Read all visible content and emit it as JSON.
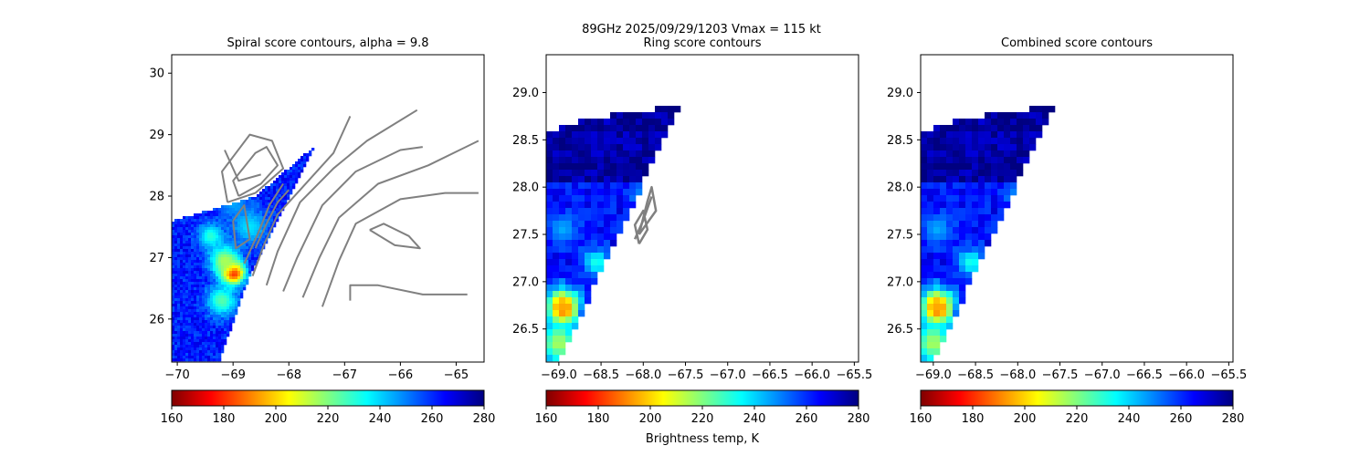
{
  "figure": {
    "suptitle_line1": "89GHz  2025/09/29/1203    Vmax = 115 kt",
    "colorbar_label": "Brightness temp, K"
  },
  "colors": {
    "contour": "#808080",
    "colormap": [
      "#800000",
      "#ff0000",
      "#ff8000",
      "#ffff00",
      "#80ff80",
      "#00ffff",
      "#0080ff",
      "#0000ff",
      "#000080"
    ],
    "colormap_name": "jet_r"
  },
  "chart_data": [
    {
      "type": "heatmap",
      "title": "Spiral score contours, alpha =  9.8",
      "xlim": [
        -70.1,
        -64.5
      ],
      "ylim": [
        25.3,
        30.3
      ],
      "xticks": [
        -70,
        -69,
        -68,
        -67,
        -66,
        -65
      ],
      "xtick_labels": [
        "−70",
        "−69",
        "−68",
        "−67",
        "−66",
        "−65"
      ],
      "yticks": [
        26,
        27,
        28,
        29,
        30
      ],
      "ytick_labels": [
        "26",
        "27",
        "28",
        "29",
        "30"
      ],
      "colorbar": {
        "range": [
          160,
          280
        ],
        "ticks": [
          "160",
          "180",
          "200",
          "220",
          "240",
          "260",
          "280"
        ]
      },
      "swath_polygon": [
        [
          -70.1,
          27.6
        ],
        [
          -69.3,
          27.8
        ],
        [
          -68.6,
          28.0
        ],
        [
          -68.2,
          28.3
        ],
        [
          -67.5,
          28.85
        ],
        [
          -68.7,
          26.7
        ],
        [
          -69.25,
          25.3
        ],
        [
          -70.1,
          25.3
        ]
      ],
      "hot_spots": [
        {
          "lon": -69.0,
          "lat": 26.75,
          "tb": 165,
          "r": 0.22
        },
        {
          "lon": -69.15,
          "lat": 26.95,
          "tb": 215,
          "r": 0.3
        },
        {
          "lon": -69.2,
          "lat": 26.3,
          "tb": 225,
          "r": 0.3
        },
        {
          "lon": -69.4,
          "lat": 27.35,
          "tb": 230,
          "r": 0.25
        },
        {
          "lon": -68.7,
          "lat": 27.5,
          "tb": 238,
          "r": 0.35
        },
        {
          "lon": -69.0,
          "lat": 27.9,
          "tb": 245,
          "r": 0.3
        }
      ],
      "background_tb": 262,
      "contours": [
        [
          [
            -68.9,
            28.0
          ],
          [
            -69.0,
            28.25
          ],
          [
            -68.6,
            28.7
          ],
          [
            -68.4,
            28.8
          ],
          [
            -68.2,
            28.5
          ],
          [
            -68.5,
            28.2
          ],
          [
            -68.9,
            28.0
          ]
        ],
        [
          [
            -69.1,
            27.9
          ],
          [
            -69.2,
            28.4
          ],
          [
            -68.7,
            29.0
          ],
          [
            -68.3,
            28.9
          ],
          [
            -68.1,
            28.45
          ],
          [
            -68.6,
            28.05
          ],
          [
            -69.1,
            27.9
          ]
        ],
        [
          [
            -69.15,
            28.75
          ],
          [
            -68.9,
            28.25
          ],
          [
            -68.5,
            28.35
          ]
        ],
        [
          [
            -69.0,
            27.6
          ],
          [
            -68.8,
            27.85
          ],
          [
            -68.7,
            27.3
          ],
          [
            -68.95,
            27.15
          ],
          [
            -69.0,
            27.6
          ]
        ],
        [
          [
            -68.6,
            27.15
          ],
          [
            -68.4,
            27.55
          ],
          [
            -68.2,
            27.9
          ],
          [
            -68.0,
            28.1
          ]
        ],
        [
          [
            -68.8,
            26.9
          ],
          [
            -68.55,
            27.4
          ],
          [
            -68.35,
            27.85
          ],
          [
            -68.1,
            28.2
          ]
        ],
        [
          [
            -68.65,
            26.7
          ],
          [
            -68.45,
            27.2
          ],
          [
            -68.2,
            27.7
          ],
          [
            -67.8,
            28.1
          ],
          [
            -67.2,
            28.7
          ],
          [
            -66.9,
            29.3
          ]
        ],
        [
          [
            -68.4,
            26.55
          ],
          [
            -68.2,
            27.1
          ],
          [
            -67.8,
            27.9
          ],
          [
            -67.2,
            28.45
          ],
          [
            -66.6,
            28.9
          ],
          [
            -65.7,
            29.4
          ]
        ],
        [
          [
            -68.1,
            26.45
          ],
          [
            -67.85,
            27.0
          ],
          [
            -67.4,
            27.85
          ],
          [
            -66.8,
            28.4
          ],
          [
            -66.0,
            28.75
          ],
          [
            -65.6,
            28.8
          ]
        ],
        [
          [
            -67.75,
            26.35
          ],
          [
            -67.45,
            27.0
          ],
          [
            -67.1,
            27.65
          ],
          [
            -66.4,
            28.2
          ],
          [
            -65.5,
            28.5
          ],
          [
            -64.6,
            28.9
          ]
        ],
        [
          [
            -67.4,
            26.2
          ],
          [
            -67.1,
            26.95
          ],
          [
            -66.8,
            27.55
          ],
          [
            -66.0,
            27.95
          ],
          [
            -65.2,
            28.05
          ],
          [
            -64.6,
            28.05
          ]
        ],
        [
          [
            -66.9,
            26.3
          ],
          [
            -66.9,
            26.55
          ],
          [
            -66.4,
            26.55
          ],
          [
            -65.6,
            26.4
          ],
          [
            -64.8,
            26.4
          ]
        ],
        [
          [
            -66.55,
            27.45
          ],
          [
            -66.1,
            27.2
          ],
          [
            -65.65,
            27.15
          ],
          [
            -65.85,
            27.35
          ],
          [
            -66.3,
            27.55
          ],
          [
            -66.55,
            27.45
          ]
        ]
      ]
    },
    {
      "type": "heatmap",
      "title": "Ring score contours",
      "xlim": [
        -69.15,
        -65.45
      ],
      "ylim": [
        26.15,
        29.4
      ],
      "xticks": [
        -69.0,
        -68.5,
        -68.0,
        -67.5,
        -67.0,
        -66.5,
        -66.0,
        -65.5
      ],
      "xtick_labels": [
        "−69.0",
        "−68.5",
        "−68.0",
        "−67.5",
        "−67.0",
        "−66.5",
        "−66.0",
        "−65.5"
      ],
      "yticks": [
        26.5,
        27.0,
        27.5,
        28.0,
        28.5,
        29.0
      ],
      "ytick_labels": [
        "26.5",
        "27.0",
        "27.5",
        "28.0",
        "28.5",
        "29.0"
      ],
      "colorbar": {
        "range": [
          160,
          280
        ],
        "ticks": [
          "160",
          "180",
          "200",
          "220",
          "240",
          "260",
          "280"
        ]
      },
      "swath_polygon": [
        [
          -69.15,
          28.6
        ],
        [
          -68.9,
          28.65
        ],
        [
          -68.5,
          28.75
        ],
        [
          -68.0,
          28.8
        ],
        [
          -67.55,
          28.9
        ],
        [
          -69.0,
          26.15
        ],
        [
          -69.15,
          26.15
        ]
      ],
      "hot_spots": [
        {
          "lon": -68.95,
          "lat": 26.7,
          "tb": 160,
          "r": 0.12
        },
        {
          "lon": -68.95,
          "lat": 26.75,
          "tb": 195,
          "r": 0.22
        },
        {
          "lon": -69.0,
          "lat": 26.35,
          "tb": 215,
          "r": 0.25
        },
        {
          "lon": -68.55,
          "lat": 27.2,
          "tb": 232,
          "r": 0.18
        },
        {
          "lon": -68.95,
          "lat": 27.55,
          "tb": 245,
          "r": 0.2
        },
        {
          "lon": -68.0,
          "lat": 27.9,
          "tb": 245,
          "r": 0.15
        }
      ],
      "background_tb": 264,
      "upper_tb": 276,
      "contours": [
        [
          [
            -68.05,
            27.4
          ],
          [
            -68.1,
            27.6
          ],
          [
            -68.0,
            27.75
          ],
          [
            -67.95,
            27.55
          ],
          [
            -68.05,
            27.4
          ]
        ],
        [
          [
            -68.05,
            27.5
          ],
          [
            -67.95,
            27.85
          ],
          [
            -67.9,
            28.0
          ],
          [
            -67.85,
            27.75
          ],
          [
            -68.05,
            27.5
          ]
        ],
        [
          [
            -68.1,
            27.45
          ],
          [
            -68.0,
            27.65
          ],
          [
            -67.9,
            27.9
          ]
        ]
      ]
    },
    {
      "type": "heatmap",
      "title": "Combined score contours",
      "xlim": [
        -69.15,
        -65.45
      ],
      "ylim": [
        26.15,
        29.4
      ],
      "xticks": [
        -69.0,
        -68.5,
        -68.0,
        -67.5,
        -67.0,
        -66.5,
        -66.0,
        -65.5
      ],
      "xtick_labels": [
        "−69.0",
        "−68.5",
        "−68.0",
        "−67.5",
        "−67.0",
        "−66.5",
        "−66.0",
        "−65.5"
      ],
      "yticks": [
        26.5,
        27.0,
        27.5,
        28.0,
        28.5,
        29.0
      ],
      "ytick_labels": [
        "26.5",
        "27.0",
        "27.5",
        "28.0",
        "28.5",
        "29.0"
      ],
      "colorbar": {
        "range": [
          160,
          280
        ],
        "ticks": [
          "160",
          "180",
          "200",
          "220",
          "240",
          "260",
          "280"
        ]
      },
      "swath_polygon": [
        [
          -69.15,
          28.6
        ],
        [
          -68.9,
          28.65
        ],
        [
          -68.5,
          28.75
        ],
        [
          -68.0,
          28.8
        ],
        [
          -67.55,
          28.9
        ],
        [
          -69.0,
          26.15
        ],
        [
          -69.15,
          26.15
        ]
      ],
      "hot_spots": [
        {
          "lon": -68.95,
          "lat": 26.7,
          "tb": 160,
          "r": 0.12
        },
        {
          "lon": -68.95,
          "lat": 26.75,
          "tb": 195,
          "r": 0.22
        },
        {
          "lon": -69.0,
          "lat": 26.35,
          "tb": 215,
          "r": 0.25
        },
        {
          "lon": -68.55,
          "lat": 27.2,
          "tb": 232,
          "r": 0.18
        },
        {
          "lon": -68.95,
          "lat": 27.55,
          "tb": 245,
          "r": 0.2
        },
        {
          "lon": -68.0,
          "lat": 27.9,
          "tb": 245,
          "r": 0.15
        }
      ],
      "background_tb": 264,
      "upper_tb": 276,
      "contours": []
    }
  ]
}
